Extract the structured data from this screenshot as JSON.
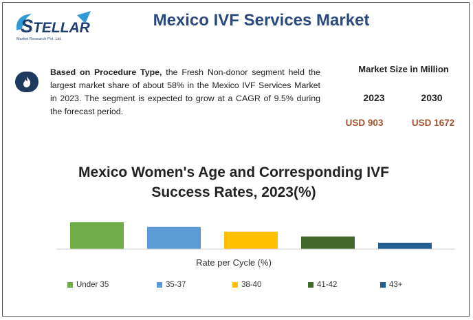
{
  "header": {
    "logo_text": "STELLAR",
    "logo_tagline": "Market Research Pvt. Ltd.",
    "title": "Mexico IVF Services Market"
  },
  "summary": {
    "icon": "flame-icon",
    "bold_lead": "Based on Procedure Type,",
    "text": " the Fresh Non-donor segment held the largest market share of about 58% in the Mexico IVF Services Market in 2023. The segment is expected to grow at a CAGR of 9.5% during the forecast period."
  },
  "market_size": {
    "header": "Market Size in Million",
    "years": [
      "2023",
      "2030"
    ],
    "values": [
      "USD 903",
      "USD 1672"
    ],
    "value_color": "#a0522d"
  },
  "chart_data": {
    "type": "bar",
    "title_line1": "Mexico Women's Age and Corresponding IVF",
    "title_line2": "Success Rates, 2023(%)",
    "xlabel": "Rate per Cycle (%)",
    "categories": [
      "Under 35",
      "35-37",
      "38-40",
      "41-42",
      "43+"
    ],
    "values": [
      34,
      28,
      22,
      16,
      8
    ],
    "colors": [
      "#70ad47",
      "#5b9bd5",
      "#ffc000",
      "#43682b",
      "#255e91"
    ],
    "ylim": [
      0,
      40
    ],
    "legend_position": "bottom",
    "grid": false
  }
}
